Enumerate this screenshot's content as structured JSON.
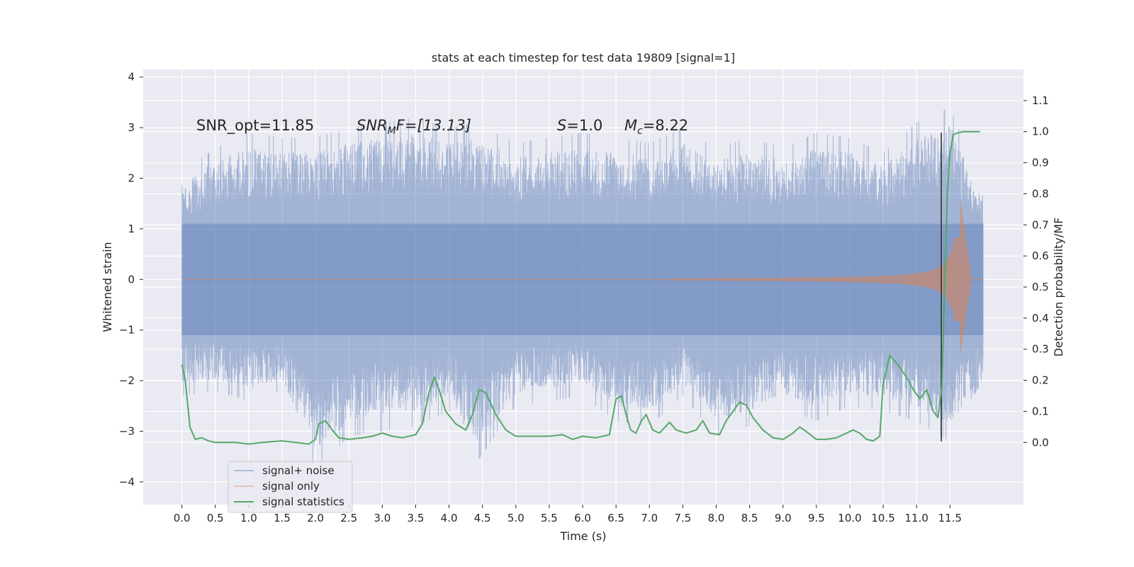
{
  "chart_data": {
    "type": "line",
    "title": "stats at each timestep for test data 19809 [signal=1]",
    "xlabel": "Time (s)",
    "ylabel_left": "Whitened strain",
    "ylabel_right": "Detection probability/MF",
    "x_ticks": [
      0.0,
      0.5,
      1.0,
      1.5,
      2.0,
      2.5,
      3.0,
      3.5,
      4.0,
      4.5,
      5.0,
      5.5,
      6.0,
      6.5,
      7.0,
      7.5,
      8.0,
      8.5,
      9.0,
      9.5,
      10.0,
      10.5,
      11.0,
      11.5
    ],
    "x_tick_labels": [
      "0.0",
      "0.5",
      "1.0",
      "1.5",
      "2.0",
      "2.5",
      "3.0",
      "3.5",
      "4.0",
      "4.5",
      "5.0",
      "5.5",
      "6.0",
      "6.5",
      "7.0",
      "7.5",
      "8.0",
      "8.5",
      "9.0",
      "9.5",
      "10.0",
      "10.5",
      "11.0",
      "11.5"
    ],
    "xlim": [
      -0.58,
      12.6
    ],
    "ylim_left": [
      -4.45,
      4.15
    ],
    "y_left_ticks": [
      -4,
      -3,
      -2,
      -1,
      0,
      1,
      2,
      3,
      4
    ],
    "y_left_tick_labels": [
      "−4",
      "−3",
      "−2",
      "−1",
      "0",
      "1",
      "2",
      "3",
      "4"
    ],
    "ylim_right": [
      -0.2,
      1.2
    ],
    "y_right_ticks": [
      0.0,
      0.1,
      0.2,
      0.3,
      0.4,
      0.5,
      0.6,
      0.7,
      0.8,
      0.9,
      1.0,
      1.1
    ],
    "y_right_tick_labels": [
      "0.0",
      "0.1",
      "0.2",
      "0.3",
      "0.4",
      "0.5",
      "0.6",
      "0.7",
      "0.8",
      "0.9",
      "1.0",
      "1.1"
    ],
    "grid": true,
    "legend_position": "lower-left",
    "annotations": {
      "snr_opt": "SNR_opt=11.85",
      "snr_mf_label": "SNR",
      "snr_mf_sub": "M",
      "snr_mf_value": "F=[13.13]",
      "s_label": "S",
      "s_value": "=1.0",
      "mc_label": "M",
      "mc_sub": "c",
      "mc_value": "=8.22"
    },
    "colors": {
      "noise": "#4c72b0",
      "signal": "#dd8452",
      "stats": "#55a868",
      "vline": "#333333",
      "background": "#eaeaf2",
      "grid": "#ffffff"
    },
    "series": [
      {
        "name": "signal+ noise",
        "axis": "left",
        "style": "dense-noise",
        "x_range": [
          0.0,
          12.0
        ],
        "envelope": [
          [
            0.0,
            -2.3,
            2.1
          ],
          [
            0.5,
            -2.2,
            2.6
          ],
          [
            1.0,
            -2.4,
            2.9
          ],
          [
            1.5,
            -2.2,
            2.8
          ],
          [
            2.0,
            -3.8,
            2.8
          ],
          [
            2.5,
            -3.1,
            3.0
          ],
          [
            3.0,
            -3.0,
            3.1
          ],
          [
            3.5,
            -2.9,
            3.2
          ],
          [
            4.0,
            -2.6,
            3.0
          ],
          [
            4.4,
            -3.65,
            3.1
          ],
          [
            5.0,
            -2.5,
            2.7
          ],
          [
            5.5,
            -2.4,
            2.8
          ],
          [
            6.0,
            -2.3,
            2.9
          ],
          [
            6.5,
            -2.8,
            2.8
          ],
          [
            7.0,
            -2.9,
            2.7
          ],
          [
            7.5,
            -2.3,
            3.0
          ],
          [
            8.0,
            -3.1,
            2.6
          ],
          [
            8.5,
            -2.9,
            2.8
          ],
          [
            9.0,
            -2.5,
            2.6
          ],
          [
            9.5,
            -2.8,
            2.9
          ],
          [
            10.0,
            -2.5,
            2.8
          ],
          [
            10.5,
            -2.6,
            2.5
          ],
          [
            11.0,
            -2.8,
            3.1
          ],
          [
            11.5,
            -3.2,
            3.4
          ],
          [
            12.0,
            -2.3,
            1.8
          ]
        ]
      },
      {
        "name": "signal only",
        "axis": "left",
        "style": "chirp",
        "chirp_start": 7.3,
        "merger_time": 11.65,
        "merger_amplitude": 1.6,
        "ringdown_end": 11.82
      },
      {
        "name": "signal statistics",
        "axis": "right",
        "style": "line",
        "x": [
          0.0,
          0.05,
          0.12,
          0.2,
          0.3,
          0.4,
          0.5,
          0.6,
          0.8,
          1.0,
          1.2,
          1.5,
          1.7,
          1.9,
          2.0,
          2.05,
          2.15,
          2.25,
          2.35,
          2.5,
          2.7,
          2.85,
          3.0,
          3.15,
          3.3,
          3.5,
          3.6,
          3.7,
          3.78,
          3.85,
          3.95,
          4.1,
          4.25,
          4.35,
          4.45,
          4.55,
          4.7,
          4.85,
          5.0,
          5.1,
          5.3,
          5.5,
          5.7,
          5.85,
          6.0,
          6.2,
          6.4,
          6.5,
          6.58,
          6.65,
          6.72,
          6.8,
          6.88,
          6.95,
          7.05,
          7.15,
          7.3,
          7.4,
          7.55,
          7.7,
          7.8,
          7.9,
          8.05,
          8.15,
          8.25,
          8.35,
          8.45,
          8.55,
          8.7,
          8.85,
          9.0,
          9.15,
          9.25,
          9.35,
          9.5,
          9.65,
          9.8,
          9.95,
          10.05,
          10.15,
          10.25,
          10.35,
          10.45,
          10.5,
          10.6,
          10.72,
          10.85,
          10.95,
          11.05,
          11.15,
          11.25,
          11.32,
          11.38,
          11.42,
          11.46,
          11.5,
          11.55,
          11.6,
          11.7,
          11.85,
          11.95
        ],
        "y": [
          0.25,
          0.2,
          0.05,
          0.01,
          0.015,
          0.005,
          0.0,
          0.0,
          0.0,
          -0.005,
          0.0,
          0.005,
          0.0,
          -0.005,
          0.01,
          0.06,
          0.07,
          0.04,
          0.015,
          0.01,
          0.015,
          0.02,
          0.03,
          0.02,
          0.015,
          0.025,
          0.06,
          0.16,
          0.21,
          0.17,
          0.1,
          0.06,
          0.04,
          0.09,
          0.17,
          0.16,
          0.09,
          0.04,
          0.02,
          0.02,
          0.02,
          0.02,
          0.025,
          0.01,
          0.02,
          0.015,
          0.025,
          0.14,
          0.15,
          0.09,
          0.04,
          0.03,
          0.07,
          0.09,
          0.04,
          0.03,
          0.065,
          0.04,
          0.03,
          0.04,
          0.07,
          0.03,
          0.025,
          0.07,
          0.1,
          0.13,
          0.12,
          0.08,
          0.04,
          0.015,
          0.01,
          0.03,
          0.05,
          0.035,
          0.01,
          0.01,
          0.015,
          0.03,
          0.04,
          0.03,
          0.01,
          0.005,
          0.02,
          0.19,
          0.28,
          0.25,
          0.21,
          0.17,
          0.14,
          0.17,
          0.1,
          0.08,
          0.18,
          0.5,
          0.8,
          0.93,
          0.99,
          0.995,
          1.0,
          1.0,
          1.0
        ]
      }
    ],
    "vline": {
      "x": 11.37,
      "y_from": -3.2,
      "y_to": 2.9
    }
  }
}
